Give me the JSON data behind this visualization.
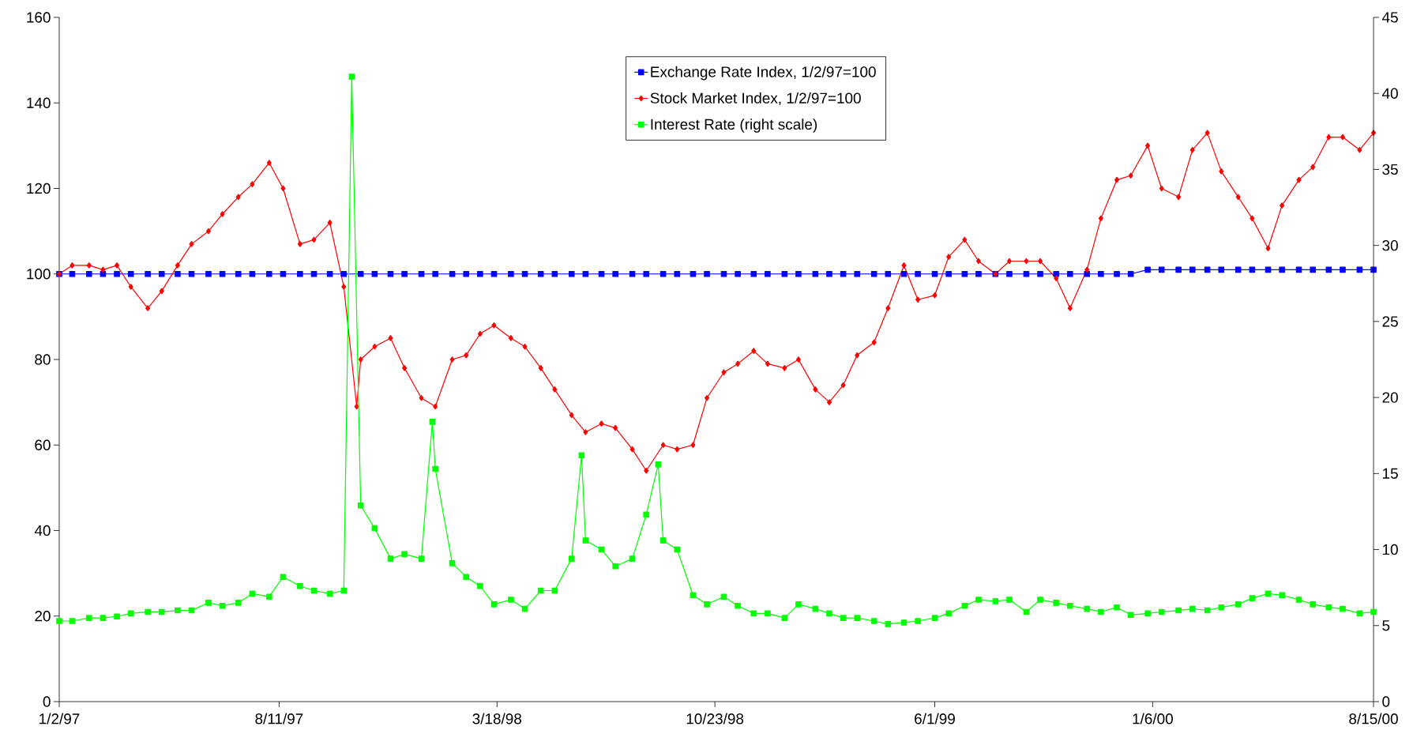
{
  "chart_data": {
    "type": "line",
    "xlim": [
      "1997-01-02",
      "2000-08-15"
    ],
    "xticks": [
      {
        "value": "1997-01-02",
        "label": "1/2/97"
      },
      {
        "value": "1997-08-11",
        "label": "8/11/97"
      },
      {
        "value": "1998-03-18",
        "label": "3/18/98"
      },
      {
        "value": "1998-10-23",
        "label": "10/23/98"
      },
      {
        "value": "1999-06-01",
        "label": "6/1/99"
      },
      {
        "value": "2000-01-06",
        "label": "1/6/00"
      },
      {
        "value": "2000-08-15",
        "label": "8/15/00"
      }
    ],
    "ylim": [
      0,
      160
    ],
    "yticks": [
      0,
      20,
      40,
      60,
      80,
      100,
      120,
      140,
      160
    ],
    "y2lim": [
      0,
      45
    ],
    "y2ticks": [
      0,
      5,
      10,
      15,
      20,
      25,
      30,
      35,
      40,
      45
    ],
    "legend": "top",
    "line_style": "solid",
    "x": [
      "1997-01-02",
      "1997-01-15",
      "1997-02-01",
      "1997-02-15",
      "1997-03-01",
      "1997-03-15",
      "1997-04-01",
      "1997-04-15",
      "1997-05-01",
      "1997-05-15",
      "1997-06-01",
      "1997-06-15",
      "1997-07-01",
      "1997-07-15",
      "1997-08-01",
      "1997-08-15",
      "1997-09-01",
      "1997-09-15",
      "1997-10-01",
      "1997-10-15",
      "1997-11-01",
      "1997-11-15",
      "1997-12-01",
      "1997-12-15",
      "1998-01-01",
      "1998-01-15",
      "1998-02-01",
      "1998-02-15",
      "1998-03-01",
      "1998-03-15",
      "1998-04-01",
      "1998-04-15",
      "1998-05-01",
      "1998-05-15",
      "1998-06-01",
      "1998-06-15",
      "1998-07-01",
      "1998-07-15",
      "1998-08-01",
      "1998-08-15",
      "1998-09-01",
      "1998-09-15",
      "1998-10-01",
      "1998-10-15",
      "1998-11-01",
      "1998-11-15",
      "1998-12-01",
      "1998-12-15",
      "1999-01-01",
      "1999-01-15",
      "1999-02-01",
      "1999-02-15",
      "1999-03-01",
      "1999-03-15",
      "1999-04-01",
      "1999-04-15",
      "1999-05-01",
      "1999-05-15",
      "1999-06-01",
      "1999-06-15",
      "1999-07-01",
      "1999-07-15",
      "1999-08-01",
      "1999-08-15",
      "1999-09-01",
      "1999-09-15",
      "1999-10-01",
      "1999-10-15",
      "1999-11-01",
      "1999-11-15",
      "1999-12-01",
      "1999-12-15",
      "2000-01-01",
      "2000-01-15",
      "2000-02-01",
      "2000-02-15",
      "2000-03-01",
      "2000-03-15",
      "2000-04-01",
      "2000-04-15",
      "2000-05-01",
      "2000-05-15",
      "2000-06-01",
      "2000-06-15",
      "2000-07-01",
      "2000-07-15",
      "2000-08-01",
      "2000-08-15"
    ],
    "series": [
      {
        "name": "Exchange Rate Index, 1/2/97=100",
        "color": "#0000ff",
        "marker": "square",
        "values": [
          100,
          100,
          100,
          100,
          100,
          100,
          100,
          100,
          100,
          100,
          100,
          100,
          100,
          100,
          100,
          100,
          100,
          100,
          100,
          100,
          100,
          100,
          100,
          100,
          100,
          100,
          100,
          100,
          100,
          100,
          100,
          100,
          100,
          100,
          100,
          100,
          100,
          100,
          100,
          100,
          100,
          100,
          100,
          100,
          100,
          100,
          100,
          100,
          100,
          100,
          100,
          100,
          100,
          100,
          100,
          100,
          100,
          100,
          100,
          100,
          100,
          100,
          100,
          100,
          100,
          100,
          100,
          100,
          100,
          100,
          100,
          100,
          101,
          101,
          101,
          101,
          101,
          101,
          101,
          101,
          101,
          101,
          101,
          101,
          101,
          101,
          101,
          101
        ]
      },
      {
        "name": "Stock Market Index, 1/2/97=100",
        "color": "#ff0000",
        "marker": "diamond",
        "x": [
          "1997-01-02",
          "1997-01-15",
          "1997-02-01",
          "1997-02-15",
          "1997-03-01",
          "1997-03-15",
          "1997-04-01",
          "1997-04-15",
          "1997-05-01",
          "1997-05-15",
          "1997-06-01",
          "1997-06-15",
          "1997-07-01",
          "1997-07-15",
          "1997-08-01",
          "1997-08-15",
          "1997-09-01",
          "1997-09-15",
          "1997-10-01",
          "1997-10-15",
          "1997-10-28",
          "1997-11-01",
          "1997-11-15",
          "1997-12-01",
          "1997-12-15",
          "1998-01-01",
          "1998-01-15",
          "1998-02-01",
          "1998-02-15",
          "1998-03-01",
          "1998-03-15",
          "1998-04-01",
          "1998-04-15",
          "1998-05-01",
          "1998-05-15",
          "1998-06-01",
          "1998-06-15",
          "1998-07-01",
          "1998-07-15",
          "1998-08-01",
          "1998-08-15",
          "1998-09-01",
          "1998-09-15",
          "1998-10-01",
          "1998-10-15",
          "1998-11-01",
          "1998-11-15",
          "1998-12-01",
          "1998-12-15",
          "1999-01-01",
          "1999-01-15",
          "1999-02-01",
          "1999-02-15",
          "1999-03-01",
          "1999-03-15",
          "1999-04-01",
          "1999-04-15",
          "1999-05-01",
          "1999-05-15",
          "1999-06-01",
          "1999-06-15",
          "1999-07-01",
          "1999-07-15",
          "1999-08-01",
          "1999-08-15",
          "1999-09-01",
          "1999-09-15",
          "1999-10-01",
          "1999-10-15",
          "1999-11-01",
          "1999-11-15",
          "1999-12-01",
          "1999-12-15",
          "2000-01-01",
          "2000-01-15",
          "2000-02-01",
          "2000-02-15",
          "2000-03-01",
          "2000-03-15",
          "2000-04-01",
          "2000-04-15",
          "2000-05-01",
          "2000-05-15",
          "2000-06-01",
          "2000-06-15",
          "2000-07-01",
          "2000-07-15",
          "2000-08-01",
          "2000-08-15"
        ],
        "values": [
          100,
          102,
          102,
          101,
          102,
          97,
          92,
          96,
          102,
          107,
          110,
          114,
          118,
          121,
          126,
          120,
          107,
          108,
          112,
          97,
          69,
          80,
          83,
          85,
          78,
          71,
          69,
          80,
          81,
          86,
          88,
          85,
          83,
          78,
          73,
          67,
          63,
          65,
          64,
          59,
          54,
          60,
          59,
          60,
          71,
          77,
          79,
          82,
          79,
          78,
          80,
          73,
          70,
          74,
          81,
          84,
          92,
          102,
          94,
          95,
          104,
          108,
          103,
          100,
          103,
          103,
          103,
          99,
          92,
          101,
          113,
          122,
          123,
          130,
          120,
          118,
          129,
          133,
          124,
          118,
          113,
          106,
          116,
          122,
          125,
          132,
          132,
          129,
          133
        ]
      },
      {
        "name": "Interest Rate (right scale)",
        "color": "#00ff00",
        "marker": "square",
        "axis": "y2",
        "x": [
          "1997-01-02",
          "1997-01-15",
          "1997-02-01",
          "1997-02-15",
          "1997-03-01",
          "1997-03-15",
          "1997-04-01",
          "1997-04-15",
          "1997-05-01",
          "1997-05-15",
          "1997-06-01",
          "1997-06-15",
          "1997-07-01",
          "1997-07-15",
          "1997-08-01",
          "1997-08-15",
          "1997-09-01",
          "1997-09-15",
          "1997-10-01",
          "1997-10-15",
          "1997-10-23",
          "1997-11-01",
          "1997-11-15",
          "1997-12-01",
          "1997-12-15",
          "1998-01-01",
          "1998-01-12",
          "1998-01-15",
          "1998-02-01",
          "1998-02-15",
          "1998-03-01",
          "1998-03-15",
          "1998-04-01",
          "1998-04-15",
          "1998-05-01",
          "1998-05-15",
          "1998-06-01",
          "1998-06-11",
          "1998-06-15",
          "1998-07-01",
          "1998-07-15",
          "1998-08-01",
          "1998-08-15",
          "1998-08-27",
          "1998-09-01",
          "1998-09-15",
          "1998-10-01",
          "1998-10-15",
          "1998-11-01",
          "1998-11-15",
          "1998-12-01",
          "1998-12-15",
          "1999-01-01",
          "1999-01-15",
          "1999-02-01",
          "1999-02-15",
          "1999-03-01",
          "1999-03-15",
          "1999-04-01",
          "1999-04-15",
          "1999-05-01",
          "1999-05-15",
          "1999-06-01",
          "1999-06-15",
          "1999-07-01",
          "1999-07-15",
          "1999-08-01",
          "1999-08-15",
          "1999-09-01",
          "1999-09-15",
          "1999-10-01",
          "1999-10-15",
          "1999-11-01",
          "1999-11-15",
          "1999-12-01",
          "1999-12-15",
          "2000-01-01",
          "2000-01-15",
          "2000-02-01",
          "2000-02-15",
          "2000-03-01",
          "2000-03-15",
          "2000-04-01",
          "2000-04-15",
          "2000-05-01",
          "2000-05-15",
          "2000-06-01",
          "2000-06-15",
          "2000-07-01",
          "2000-07-15",
          "2000-08-01",
          "2000-08-15"
        ],
        "values": [
          5.3,
          5.3,
          5.5,
          5.5,
          5.6,
          5.8,
          5.9,
          5.9,
          6.0,
          6.0,
          6.5,
          6.3,
          6.5,
          7.1,
          6.9,
          8.2,
          7.6,
          7.3,
          7.1,
          7.3,
          41.1,
          12.9,
          11.4,
          9.4,
          9.7,
          9.4,
          18.4,
          15.3,
          9.1,
          8.2,
          7.6,
          6.4,
          6.7,
          6.1,
          7.3,
          7.3,
          9.4,
          16.2,
          10.6,
          10.0,
          8.9,
          9.4,
          12.3,
          15.6,
          10.6,
          10.0,
          7.0,
          6.4,
          6.9,
          6.3,
          5.8,
          5.8,
          5.5,
          6.4,
          6.1,
          5.8,
          5.5,
          5.5,
          5.3,
          5.1,
          5.2,
          5.3,
          5.5,
          5.8,
          6.3,
          6.7,
          6.6,
          6.7,
          5.9,
          6.7,
          6.5,
          6.3,
          6.1,
          5.9,
          6.2,
          5.7,
          5.8,
          5.9,
          6.0,
          6.1,
          6.0,
          6.2,
          6.4,
          6.8,
          7.1,
          7.0,
          6.7,
          6.4,
          6.2,
          6.1,
          5.8,
          5.9
        ]
      }
    ]
  }
}
